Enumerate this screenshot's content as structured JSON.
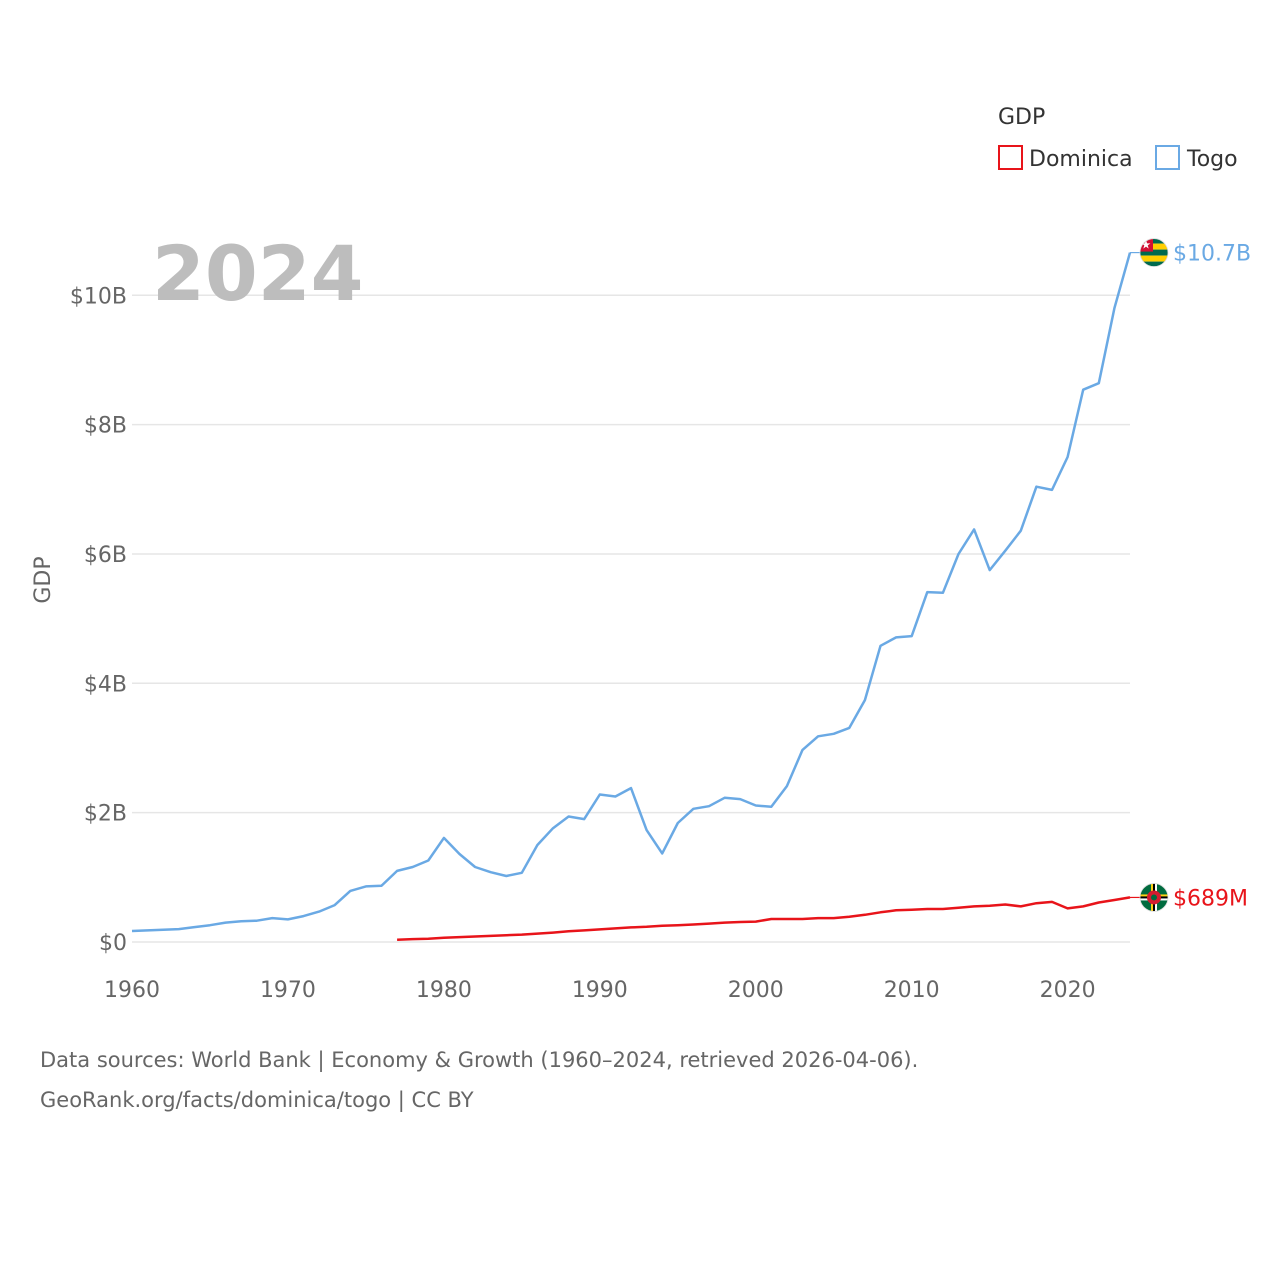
{
  "chart_data": {
    "type": "line",
    "title": "",
    "year_label": "2024",
    "xlabel": "",
    "ylabel": "GDP",
    "xlim": [
      1960,
      2024
    ],
    "ylim": [
      0,
      10700000000
    ],
    "x_ticks": [
      1960,
      1970,
      1980,
      1990,
      2000,
      2010,
      2020
    ],
    "x_tick_labels": [
      "1960",
      "1970",
      "1980",
      "1990",
      "2000",
      "2010",
      "2020"
    ],
    "y_ticks": [
      0,
      2000000000,
      4000000000,
      6000000000,
      8000000000,
      10000000000
    ],
    "y_tick_labels": [
      "$0",
      "$2B",
      "$4B",
      "$6B",
      "$8B",
      "$10B"
    ],
    "grid": true,
    "legend": {
      "title": "GDP",
      "position": "top-right",
      "items": [
        "Dominica",
        "Togo"
      ]
    },
    "series": [
      {
        "name": "Togo",
        "color": "#6aa9e4",
        "end_label": "$10.7B",
        "flag": "togo-flag-icon",
        "x": [
          1960,
          1961,
          1962,
          1963,
          1964,
          1965,
          1966,
          1967,
          1968,
          1969,
          1970,
          1971,
          1972,
          1973,
          1974,
          1975,
          1976,
          1977,
          1978,
          1979,
          1980,
          1981,
          1982,
          1983,
          1984,
          1985,
          1986,
          1987,
          1988,
          1989,
          1990,
          1991,
          1992,
          1993,
          1994,
          1995,
          1996,
          1997,
          1998,
          1999,
          2000,
          2001,
          2002,
          2003,
          2004,
          2005,
          2006,
          2007,
          2008,
          2009,
          2010,
          2011,
          2012,
          2013,
          2014,
          2015,
          2016,
          2017,
          2018,
          2019,
          2020,
          2021,
          2022,
          2023,
          2024
        ],
        "values": [
          0.17,
          0.18,
          0.19,
          0.2,
          0.23,
          0.26,
          0.3,
          0.32,
          0.33,
          0.37,
          0.35,
          0.4,
          0.47,
          0.57,
          0.79,
          0.86,
          0.87,
          1.1,
          1.16,
          1.26,
          1.61,
          1.36,
          1.16,
          1.08,
          1.02,
          1.07,
          1.5,
          1.76,
          1.94,
          1.9,
          2.28,
          2.25,
          2.38,
          1.73,
          1.37,
          1.84,
          2.06,
          2.1,
          2.23,
          2.21,
          2.11,
          2.09,
          2.41,
          2.97,
          3.18,
          3.22,
          3.31,
          3.74,
          4.58,
          4.71,
          4.73,
          5.41,
          5.4,
          6.0,
          6.38,
          5.75,
          6.05,
          6.36,
          7.04,
          6.99,
          7.5,
          8.54,
          8.64,
          9.8,
          10.66
        ]
      },
      {
        "name": "Dominica",
        "color": "#e8141a",
        "end_label": "$689M",
        "flag": "dominica-flag-icon",
        "x": [
          1977,
          1978,
          1979,
          1980,
          1981,
          1982,
          1983,
          1984,
          1985,
          1986,
          1987,
          1988,
          1989,
          1990,
          1991,
          1992,
          1993,
          1994,
          1995,
          1996,
          1997,
          1998,
          1999,
          2000,
          2001,
          2002,
          2003,
          2004,
          2005,
          2006,
          2007,
          2008,
          2009,
          2010,
          2011,
          2012,
          2013,
          2014,
          2015,
          2016,
          2017,
          2018,
          2019,
          2020,
          2021,
          2022,
          2023,
          2024
        ],
        "values": [
          0.035,
          0.045,
          0.05,
          0.065,
          0.075,
          0.085,
          0.095,
          0.105,
          0.115,
          0.13,
          0.145,
          0.165,
          0.18,
          0.195,
          0.21,
          0.225,
          0.235,
          0.25,
          0.26,
          0.27,
          0.285,
          0.3,
          0.31,
          0.315,
          0.355,
          0.355,
          0.355,
          0.37,
          0.37,
          0.39,
          0.42,
          0.46,
          0.49,
          0.5,
          0.51,
          0.51,
          0.53,
          0.55,
          0.56,
          0.58,
          0.55,
          0.6,
          0.62,
          0.52,
          0.55,
          0.61,
          0.65,
          0.689
        ]
      }
    ]
  },
  "footer": {
    "line1": "Data sources: World Bank | Economy & Growth (1960–2024, retrieved 2026-04-06).",
    "line2": "GeoRank.org/facts/dominica/togo | CC BY"
  }
}
